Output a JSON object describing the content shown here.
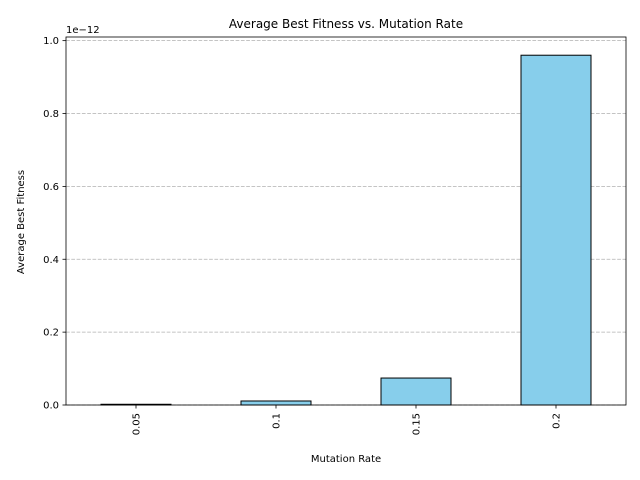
{
  "chart_data": {
    "type": "bar",
    "title": "Average Best Fitness vs. Mutation Rate",
    "xlabel": "Mutation Rate",
    "ylabel": "Average Best Fitness",
    "categories": [
      "0.05",
      "0.1",
      "0.15",
      "0.2"
    ],
    "values": [
      2e-15,
      1.1e-14,
      7.4e-14,
      9.6e-13
    ],
    "ylim": [
      0,
      1.01e-12
    ],
    "y_ticks": [
      0,
      2e-13,
      4e-13,
      6e-13,
      8e-13,
      1e-12
    ],
    "y_tick_labels": [
      "0.0",
      "0.2",
      "0.4",
      "0.6",
      "0.8",
      "1.0"
    ],
    "offset_label": "1e−12",
    "bar_color": "#87CEEB",
    "grid": "y-dashed",
    "x_tick_rotation": "vertical"
  }
}
